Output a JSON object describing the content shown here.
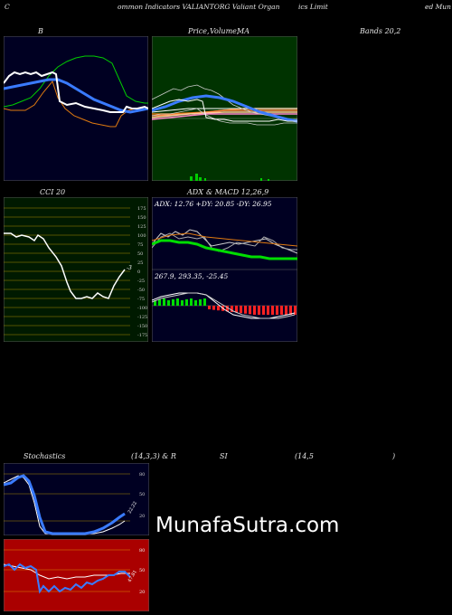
{
  "header": {
    "left": "C",
    "text1": "ommon  Indicators VALIANTORG Valiant Organ",
    "text2": "ics Limit",
    "text3": "ed Mun"
  },
  "panels": {
    "bollinger_label": "B",
    "price_label_a": "Price,",
    "price_label_b": "Volume,",
    "price_label_c": "MA",
    "bands_label": "Bands 20,2",
    "cci_label": "CCI 20",
    "adx_title_a": "ADX",
    "adx_title_b": "& MACD 12,26,9",
    "adx_values": "ADX: 12.76  +DY: 20.85 -DY: 26.95",
    "macd_values": "267.9,  293.35,  -25.45",
    "cci_value": "-3",
    "stoch_label": "Stochastics",
    "stoch_params": "(14,3,3) & R",
    "rsi_label": "SI",
    "rsi_params": "(14,5",
    "rsi_close": ")",
    "stoch_value": "22.22",
    "rsi_value": "47.81"
  },
  "cci_ticks": [
    "175",
    "150",
    "125",
    "100",
    "75",
    "50",
    "25",
    "0",
    "-25",
    "-50",
    "-75",
    "-100",
    "-125",
    "-150",
    "-175"
  ],
  "stoch_ticks": [
    "80",
    "50",
    "20"
  ],
  "rsi_ticks": [
    "80",
    "50",
    "20"
  ],
  "watermark": "MunafaSutra.com",
  "colors": {
    "dark_panel": "#000022",
    "green_panel": "#003300",
    "cci_panel": "#001a00",
    "rsi_panel": "#aa0000",
    "line_blue": "#3a7bff",
    "line_green": "#00dd00",
    "line_orange": "#e07a10"
  }
}
